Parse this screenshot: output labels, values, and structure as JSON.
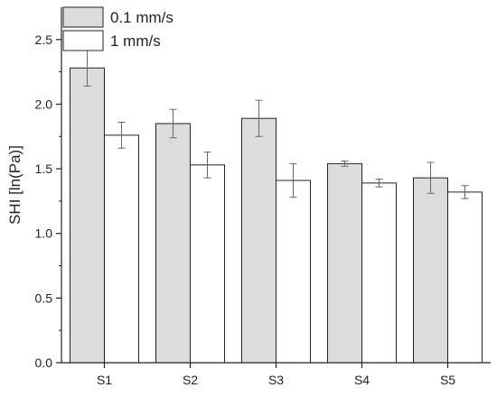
{
  "chart_data": {
    "type": "bar",
    "title": "",
    "xlabel": "",
    "ylabel": "SHI [ln(Pa)]",
    "ylim": [
      0,
      2.75
    ],
    "yticks": [
      "0.0",
      "0.5",
      "1.0",
      "1.5",
      "2.0",
      "2.5"
    ],
    "categories": [
      "S1",
      "S2",
      "S3",
      "S4",
      "S5"
    ],
    "series": [
      {
        "name": "0.1 mm/s",
        "color": "#dcdcdc",
        "values": [
          2.28,
          1.85,
          1.89,
          1.54,
          1.43
        ],
        "errors": [
          0.14,
          0.11,
          0.14,
          0.02,
          0.12
        ]
      },
      {
        "name": "1 mm/s",
        "color": "#ffffff",
        "values": [
          1.76,
          1.53,
          1.41,
          1.39,
          1.32
        ],
        "errors": [
          0.1,
          0.1,
          0.13,
          0.03,
          0.05
        ]
      }
    ],
    "grid": false,
    "legend": "top-left"
  }
}
